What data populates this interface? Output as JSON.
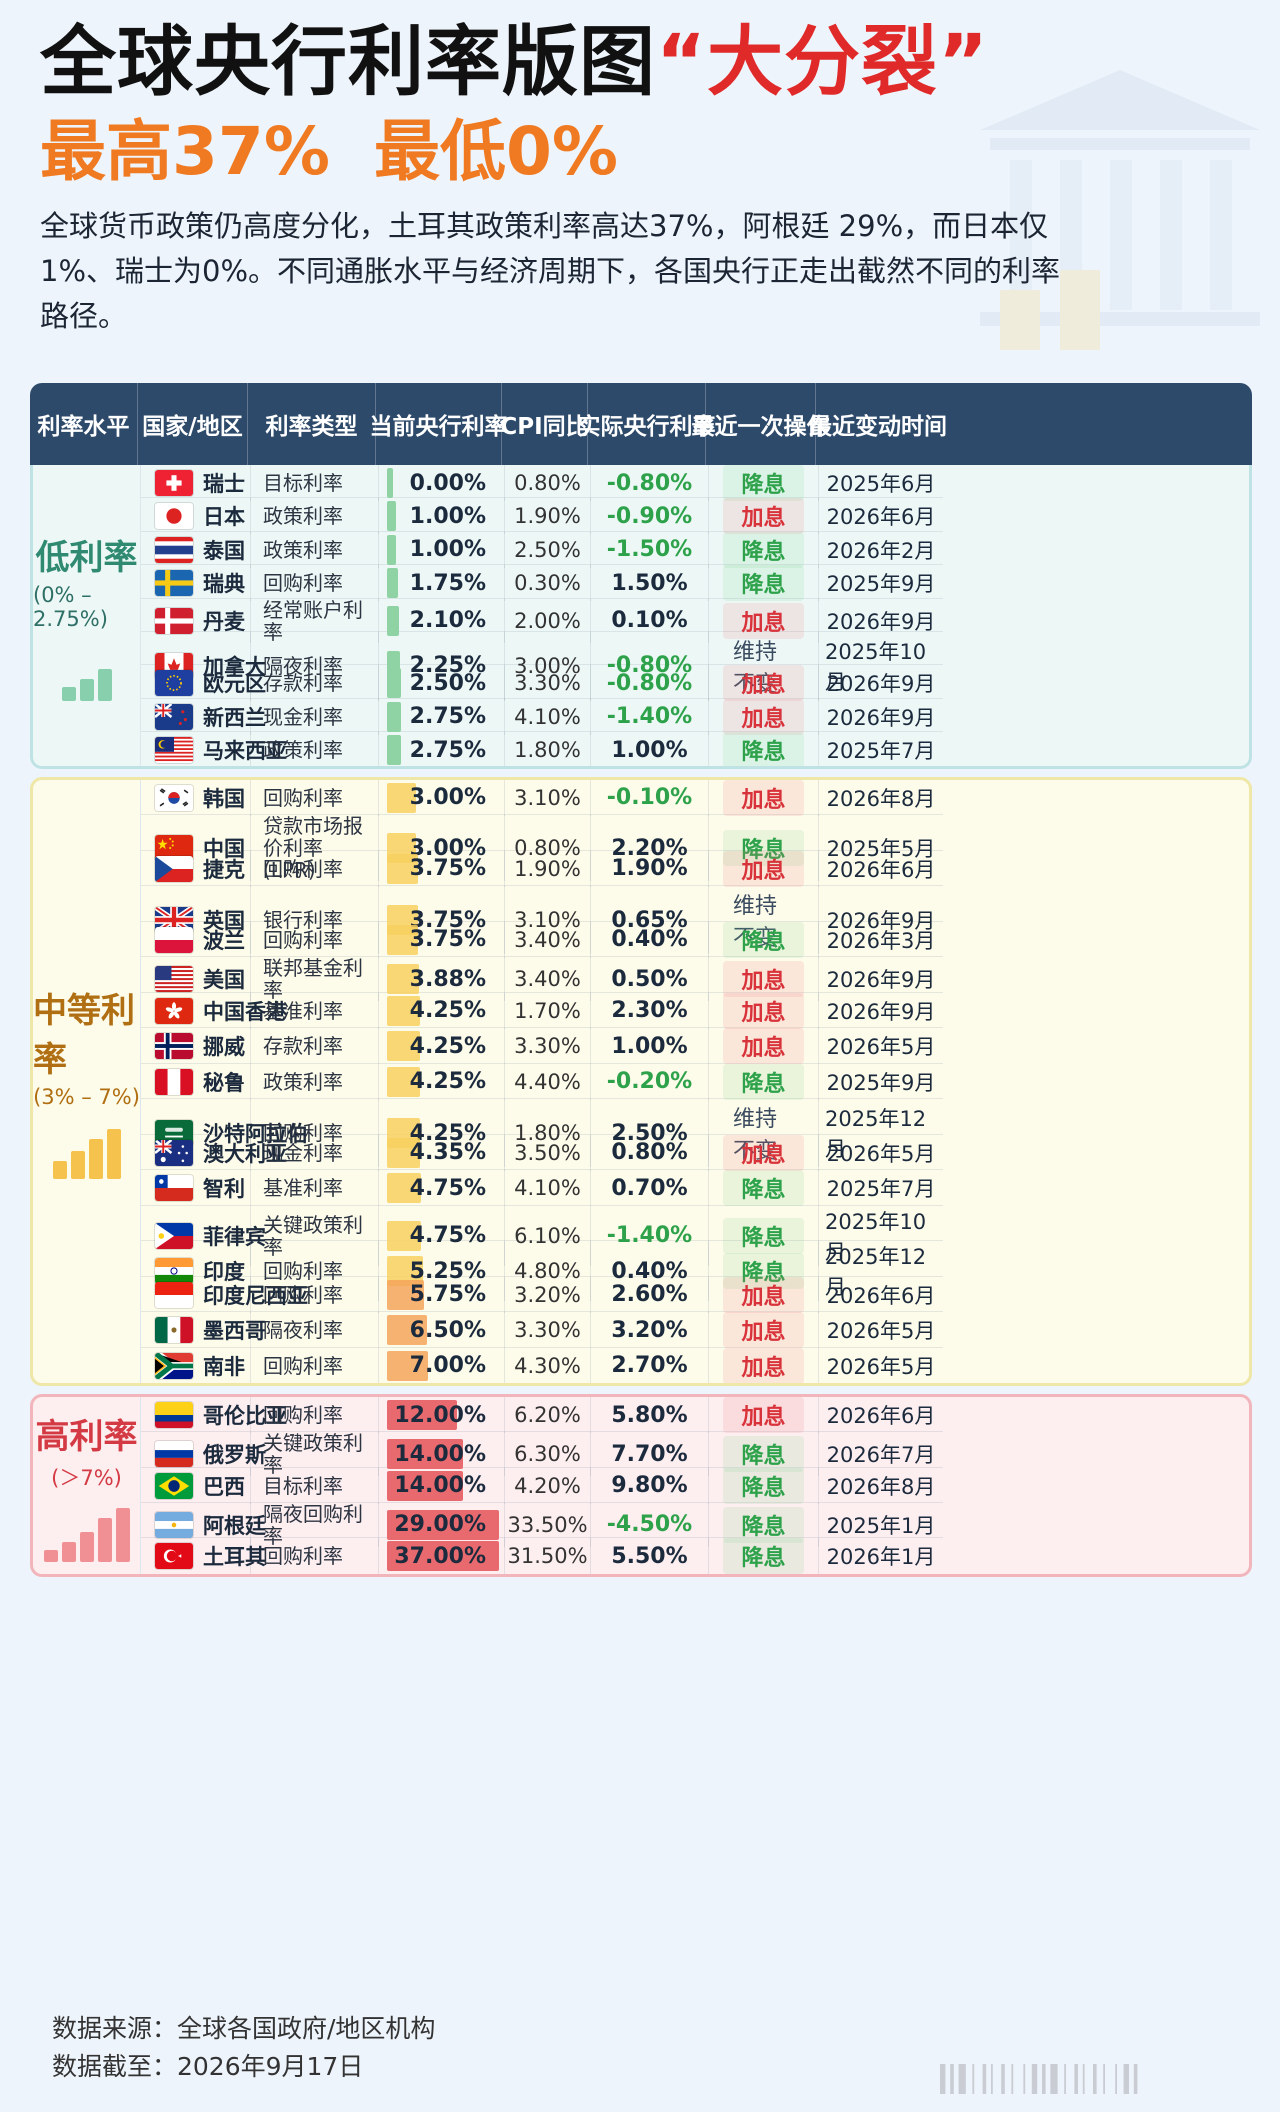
{
  "header": {
    "title_main": "全球央行利率版图",
    "title_highlight": "“大分裂”",
    "subtitle_high": "最高37%",
    "subtitle_low": "最低0%",
    "intro": "全球货币政策仍高度分化，土耳其政策利率高达37%，阿根廷 29%，而日本仅1%、瑞士为0%。不同通胀水平与经济周期下，各国央行正走出截然不同的利率路径。"
  },
  "columns": [
    "利率水平",
    "国家/地区",
    "利率类型",
    "当前央行利率",
    "CPI同比",
    "实际央行利率",
    "最近一次操作",
    "最近变动时间"
  ],
  "ops": {
    "down": "降息",
    "up": "加息",
    "hold": "维持不变"
  },
  "colors": {
    "negative": "#2da24a",
    "positive": "#1c2a3d",
    "cut": "#2da24a",
    "hike": "#d8323a",
    "low_bar": "#8fd3a5",
    "mid_bar_start": "#f8d060",
    "mid_bar_end": "#f4a55a",
    "high_bar": "#e96a6e"
  },
  "chart_data": {
    "type": "table",
    "rate_scale_max": 37,
    "sections": [
      {
        "name": "低利率",
        "range": "(0% – 2.75%)",
        "rows": [
          {
            "country": "瑞士",
            "flag": "swiss-flag-icon",
            "type": "目标利率",
            "rate": "0.00%",
            "rate_value": 0.0,
            "cpi": "0.80%",
            "real": "-0.80%",
            "op": "down",
            "date": "2025年6月"
          },
          {
            "country": "日本",
            "flag": "japan-flag-icon",
            "type": "政策利率",
            "rate": "1.00%",
            "rate_value": 1.0,
            "cpi": "1.90%",
            "real": "-0.90%",
            "op": "up",
            "date": "2026年6月"
          },
          {
            "country": "泰国",
            "flag": "thailand-flag-icon",
            "type": "政策利率",
            "rate": "1.00%",
            "rate_value": 1.0,
            "cpi": "2.50%",
            "real": "-1.50%",
            "op": "down",
            "date": "2026年2月"
          },
          {
            "country": "瑞典",
            "flag": "sweden-flag-icon",
            "type": "回购利率",
            "rate": "1.75%",
            "rate_value": 1.75,
            "cpi": "0.30%",
            "real": "1.50%",
            "op": "down",
            "date": "2025年9月"
          },
          {
            "country": "丹麦",
            "flag": "denmark-flag-icon",
            "type": "经常账户利率",
            "rate": "2.10%",
            "rate_value": 2.1,
            "cpi": "2.00%",
            "real": "0.10%",
            "op": "up",
            "date": "2026年9月"
          },
          {
            "country": "加拿大",
            "flag": "canada-flag-icon",
            "type": "隔夜利率",
            "rate": "2.25%",
            "rate_value": 2.25,
            "cpi": "3.00%",
            "real": "-0.80%",
            "op": "hold",
            "date": "2025年10月"
          },
          {
            "country": "欧元区",
            "flag": "eu-flag-icon",
            "type": "存款利率",
            "rate": "2.50%",
            "rate_value": 2.5,
            "cpi": "3.30%",
            "real": "-0.80%",
            "op": "up",
            "date": "2026年9月"
          },
          {
            "country": "新西兰",
            "flag": "new-zealand-flag-icon",
            "type": "现金利率",
            "rate": "2.75%",
            "rate_value": 2.75,
            "cpi": "4.10%",
            "real": "-1.40%",
            "op": "up",
            "date": "2026年9月"
          },
          {
            "country": "马来西亚",
            "flag": "malaysia-flag-icon",
            "type": "政策利率",
            "rate": "2.75%",
            "rate_value": 2.75,
            "cpi": "1.80%",
            "real": "1.00%",
            "op": "down",
            "date": "2025年7月"
          }
        ]
      },
      {
        "name": "中等利率",
        "range": "(3% – 7%)",
        "rows": [
          {
            "country": "韩国",
            "flag": "korea-flag-icon",
            "type": "回购利率",
            "rate": "3.00%",
            "rate_value": 3.0,
            "cpi": "3.10%",
            "real": "-0.10%",
            "op": "up",
            "date": "2026年8月"
          },
          {
            "country": "中国",
            "flag": "china-flag-icon",
            "type": "贷款市场报价利率(LPR)",
            "rate": "3.00%",
            "rate_value": 3.0,
            "cpi": "0.80%",
            "real": "2.20%",
            "op": "down",
            "date": "2025年5月"
          },
          {
            "country": "捷克",
            "flag": "czech-flag-icon",
            "type": "回购利率",
            "rate": "3.75%",
            "rate_value": 3.75,
            "cpi": "1.90%",
            "real": "1.90%",
            "op": "up",
            "date": "2026年6月"
          },
          {
            "country": "英国",
            "flag": "uk-flag-icon",
            "type": "银行利率",
            "rate": "3.75%",
            "rate_value": 3.75,
            "cpi": "3.10%",
            "real": "0.65%",
            "op": "hold",
            "date": "2026年9月"
          },
          {
            "country": "波兰",
            "flag": "poland-flag-icon",
            "type": "回购利率",
            "rate": "3.75%",
            "rate_value": 3.75,
            "cpi": "3.40%",
            "real": "0.40%",
            "op": "down",
            "date": "2026年3月"
          },
          {
            "country": "美国",
            "flag": "usa-flag-icon",
            "type": "联邦基金利率",
            "rate": "3.88%",
            "rate_value": 3.88,
            "cpi": "3.40%",
            "real": "0.50%",
            "op": "up",
            "date": "2026年9月"
          },
          {
            "country": "中国香港",
            "flag": "hongkong-flag-icon",
            "type": "基准利率",
            "rate": "4.25%",
            "rate_value": 4.25,
            "cpi": "1.70%",
            "real": "2.30%",
            "op": "up",
            "date": "2026年9月"
          },
          {
            "country": "挪威",
            "flag": "norway-flag-icon",
            "type": "存款利率",
            "rate": "4.25%",
            "rate_value": 4.25,
            "cpi": "3.30%",
            "real": "1.00%",
            "op": "up",
            "date": "2026年5月"
          },
          {
            "country": "秘鲁",
            "flag": "peru-flag-icon",
            "type": "政策利率",
            "rate": "4.25%",
            "rate_value": 4.25,
            "cpi": "4.40%",
            "real": "-0.20%",
            "op": "down",
            "date": "2025年9月"
          },
          {
            "country": "沙特阿拉伯",
            "flag": "saudi-flag-icon",
            "type": "回购利率",
            "rate": "4.25%",
            "rate_value": 4.25,
            "cpi": "1.80%",
            "real": "2.50%",
            "op": "hold",
            "date": "2025年12月"
          },
          {
            "country": "澳大利亚",
            "flag": "australia-flag-icon",
            "type": "现金利率",
            "rate": "4.35%",
            "rate_value": 4.35,
            "cpi": "3.50%",
            "real": "0.80%",
            "op": "up",
            "date": "2026年5月"
          },
          {
            "country": "智利",
            "flag": "chile-flag-icon",
            "type": "基准利率",
            "rate": "4.75%",
            "rate_value": 4.75,
            "cpi": "4.10%",
            "real": "0.70%",
            "op": "down",
            "date": "2025年7月"
          },
          {
            "country": "菲律宾",
            "flag": "philippines-flag-icon",
            "type": "关键政策利率",
            "rate": "4.75%",
            "rate_value": 4.75,
            "cpi": "6.10%",
            "real": "-1.40%",
            "op": "down",
            "date": "2025年10月"
          },
          {
            "country": "印度",
            "flag": "india-flag-icon",
            "type": "回购利率",
            "rate": "5.25%",
            "rate_value": 5.25,
            "cpi": "4.80%",
            "real": "0.40%",
            "op": "down",
            "date": "2025年12月"
          },
          {
            "country": "印度尼西亚",
            "flag": "indonesia-flag-icon",
            "type": "回购利率",
            "rate": "5.75%",
            "rate_value": 5.75,
            "cpi": "3.20%",
            "real": "2.60%",
            "op": "up",
            "date": "2026年6月"
          },
          {
            "country": "墨西哥",
            "flag": "mexico-flag-icon",
            "type": "隔夜利率",
            "rate": "6.50%",
            "rate_value": 6.5,
            "cpi": "3.30%",
            "real": "3.20%",
            "op": "up",
            "date": "2026年5月"
          },
          {
            "country": "南非",
            "flag": "south-africa-flag-icon",
            "type": "回购利率",
            "rate": "7.00%",
            "rate_value": 7.0,
            "cpi": "4.30%",
            "real": "2.70%",
            "op": "up",
            "date": "2026年5月"
          }
        ]
      },
      {
        "name": "高利率",
        "range": "(＞7%)",
        "rows": [
          {
            "country": "哥伦比亚",
            "flag": "colombia-flag-icon",
            "type": "回购利率",
            "rate": "12.00%",
            "rate_value": 12.0,
            "cpi": "6.20%",
            "real": "5.80%",
            "op": "up",
            "date": "2026年6月"
          },
          {
            "country": "俄罗斯",
            "flag": "russia-flag-icon",
            "type": "关键政策利率",
            "rate": "14.00%",
            "rate_value": 14.0,
            "cpi": "6.30%",
            "real": "7.70%",
            "op": "down",
            "date": "2026年7月"
          },
          {
            "country": "巴西",
            "flag": "brazil-flag-icon",
            "type": "目标利率",
            "rate": "14.00%",
            "rate_value": 14.0,
            "cpi": "4.20%",
            "real": "9.80%",
            "op": "down",
            "date": "2026年8月"
          },
          {
            "country": "阿根廷",
            "flag": "argentina-flag-icon",
            "type": "隔夜回购利率",
            "rate": "29.00%",
            "rate_value": 29.0,
            "cpi": "33.50%",
            "real": "-4.50%",
            "op": "down",
            "date": "2025年1月"
          },
          {
            "country": "土耳其",
            "flag": "turkey-flag-icon",
            "type": "回购利率",
            "rate": "37.00%",
            "rate_value": 37.0,
            "cpi": "31.50%",
            "real": "5.50%",
            "op": "down",
            "date": "2026年1月"
          }
        ]
      }
    ]
  },
  "footer": {
    "source": "数据来源：全球各国政府/地区机构",
    "as_of": "数据截至：2026年9月17日"
  }
}
